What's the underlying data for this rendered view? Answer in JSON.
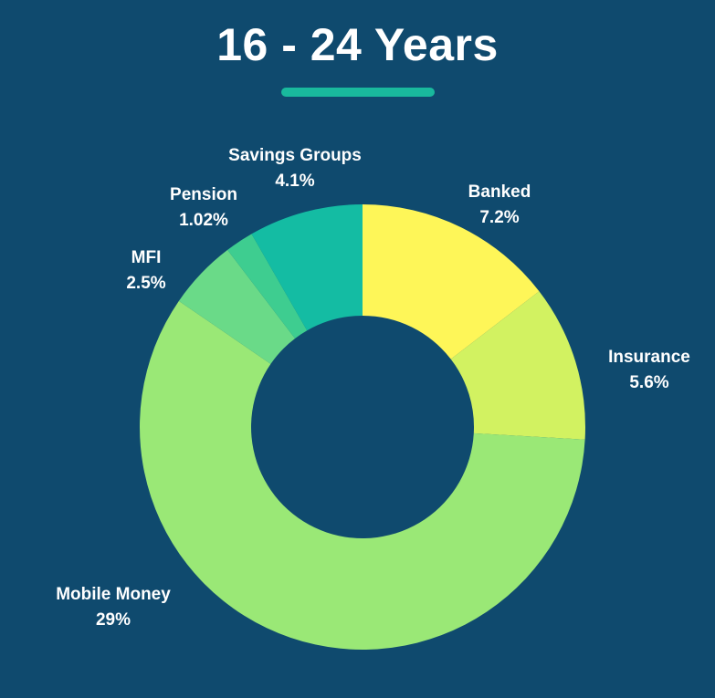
{
  "title": "16 - 24 Years",
  "colors": {
    "background": "#0f4a6e",
    "accent": "#19b99d"
  },
  "chart_data": {
    "type": "pie",
    "style": "donut",
    "slices": [
      {
        "label": "Banked",
        "value_label": "7.2%",
        "value": 7.2,
        "color": "#fef658"
      },
      {
        "label": "Insurance",
        "value_label": "5.6%",
        "value": 5.6,
        "color": "#d2f261"
      },
      {
        "label": "Mobile Money",
        "value_label": "29%",
        "value": 29,
        "color": "#9ae876"
      },
      {
        "label": "MFI",
        "value_label": "2.5%",
        "value": 2.5,
        "color": "#6ada88"
      },
      {
        "label": "Pension",
        "value_label": "1.02%",
        "value": 1.02,
        "color": "#3ecd90"
      },
      {
        "label": "Savings Groups",
        "value_label": "4.1%",
        "value": 4.1,
        "color": "#14bca3"
      }
    ]
  }
}
